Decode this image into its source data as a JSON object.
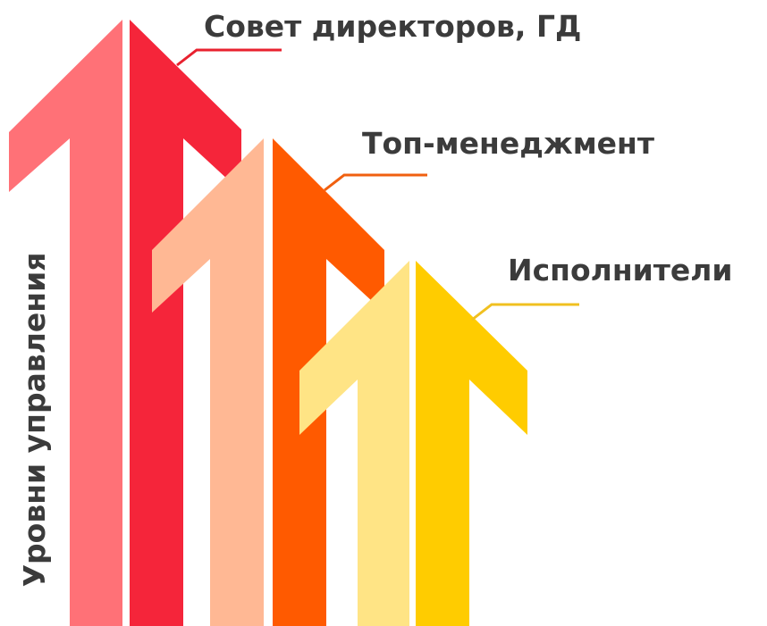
{
  "axis_label": "Уровни управления",
  "levels": [
    {
      "label": "Совет директоров, ГД"
    },
    {
      "label": "Топ-менеджмент"
    },
    {
      "label": "Исполнители"
    }
  ]
}
